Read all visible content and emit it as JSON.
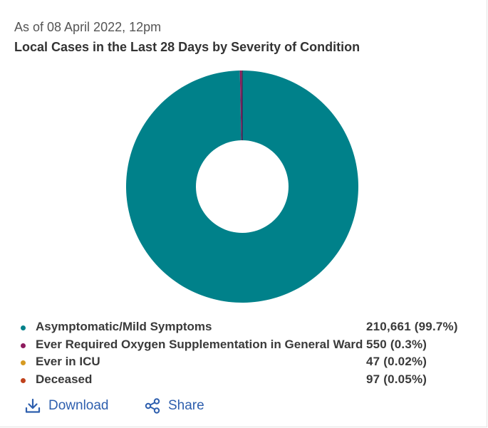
{
  "header": {
    "as_of": "As of 08 April 2022, 12pm",
    "title": "Local Cases in the Last 28 Days by Severity of Condition"
  },
  "chart_data": {
    "type": "pie",
    "donut": true,
    "title": "Local Cases in the Last 28 Days by Severity of Condition",
    "legend_position": "bottom",
    "slices": [
      {
        "label": "Asymptomatic/Mild Symptoms",
        "value": 210661,
        "percent": 99.7,
        "display": "210,661 (99.7%)",
        "color": "#00818a"
      },
      {
        "label": "Ever Required Oxygen Supplementation in General Ward",
        "value": 550,
        "percent": 0.3,
        "display": "550 (0.3%)",
        "color": "#8e1b5e"
      },
      {
        "label": "Ever in ICU",
        "value": 47,
        "percent": 0.02,
        "display": "47 (0.02%)",
        "color": "#d69a22"
      },
      {
        "label": "Deceased",
        "value": 97,
        "percent": 0.05,
        "display": "97 (0.05%)",
        "color": "#c0421c"
      }
    ]
  },
  "actions": {
    "download_label": "Download",
    "share_label": "Share",
    "download_icon": "download-icon",
    "share_icon": "share-icon",
    "accent_color": "#2e5fae"
  }
}
